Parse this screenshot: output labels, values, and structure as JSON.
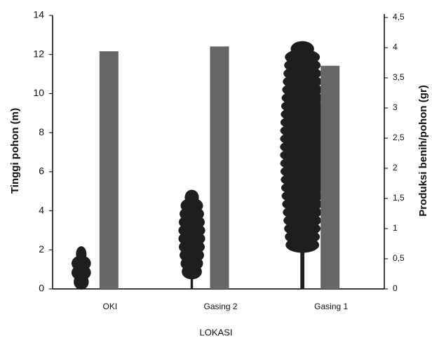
{
  "chart_data": {
    "type": "bar",
    "x_label": "LOKASI",
    "y_label": "Tinggi pohon (m)",
    "y2_label": "Produksi benih/pohon (gr)",
    "categories": [
      "OKI",
      "Gasing 2",
      "Gasing 1"
    ],
    "series": [
      {
        "mark": "pictogram",
        "color": "#1e1e1e",
        "values": [
          2.0,
          4.9,
          12.5
        ]
      },
      {
        "mark": "bar",
        "axis": "y2",
        "color": "#666666",
        "values": [
          3.94,
          4.02,
          3.7
        ]
      }
    ],
    "ylim": [
      0,
      14
    ],
    "yticks": [
      0,
      2,
      4,
      6,
      8,
      10,
      12,
      14
    ],
    "y2lim": [
      0,
      4.5
    ],
    "y2ticks": [
      0,
      {
        "value": 0.5,
        "label": "0,5"
      },
      1,
      {
        "value": 1.5,
        "label": "1,5"
      },
      2,
      {
        "value": 2.5,
        "label": "2,5"
      },
      3,
      {
        "value": 3.5,
        "label": "3,5"
      },
      4,
      {
        "value": 4.5,
        "label": "4,5"
      }
    ],
    "grid": false
  }
}
